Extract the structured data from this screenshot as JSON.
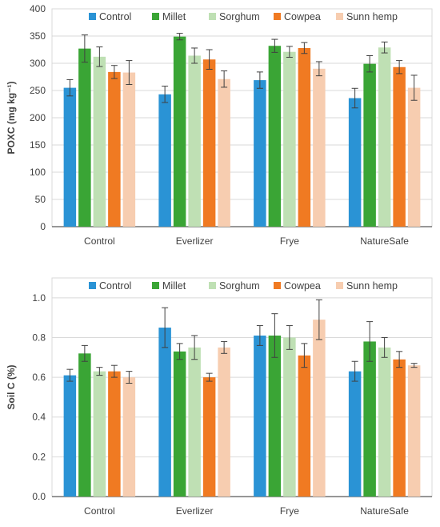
{
  "colors": {
    "Control": "#2a93d5",
    "Millet": "#3aa535",
    "Sorghum": "#bfe0b4",
    "Cowpea": "#f07a22",
    "Sunn hemp": "#f7cdb0",
    "grid": "#d9d9d9",
    "axis": "#595959",
    "error_bar": "#404040"
  },
  "chart_data": [
    {
      "type": "bar",
      "ylabel": "POXC (mg kg⁻¹)",
      "xlabel": "",
      "ylim": [
        0,
        400
      ],
      "yticks": [
        "0",
        "50",
        "100",
        "150",
        "200",
        "250",
        "300",
        "350",
        "400"
      ],
      "grid": true,
      "legend_position": "top",
      "categories": [
        "Control",
        "Everlizer",
        "Frye",
        "NatureSafe"
      ],
      "series": [
        {
          "name": "Control",
          "values": [
            255,
            243,
            269,
            236
          ],
          "errors": [
            15,
            15,
            15,
            18
          ]
        },
        {
          "name": "Millet",
          "values": [
            327,
            349,
            332,
            299
          ],
          "errors": [
            25,
            6,
            12,
            15
          ]
        },
        {
          "name": "Sorghum",
          "values": [
            312,
            314,
            321,
            329
          ],
          "errors": [
            18,
            14,
            10,
            10
          ]
        },
        {
          "name": "Cowpea",
          "values": [
            284,
            307,
            328,
            293
          ],
          "errors": [
            12,
            18,
            10,
            12
          ]
        },
        {
          "name": "Sunn hemp",
          "values": [
            283,
            271,
            290,
            255
          ],
          "errors": [
            22,
            15,
            13,
            23
          ]
        }
      ]
    },
    {
      "type": "bar",
      "ylabel": "Soil C (%)",
      "xlabel": "",
      "ylim": [
        0,
        1.1
      ],
      "yticks": [
        "0.0",
        "0.2",
        "0.4",
        "0.6",
        "0.8",
        "1.0"
      ],
      "grid": true,
      "legend_position": "top",
      "categories": [
        "Control",
        "Everlizer",
        "Frye",
        "NatureSafe"
      ],
      "series": [
        {
          "name": "Control",
          "values": [
            0.61,
            0.85,
            0.81,
            0.63
          ],
          "errors": [
            0.03,
            0.1,
            0.05,
            0.05
          ]
        },
        {
          "name": "Millet",
          "values": [
            0.72,
            0.73,
            0.81,
            0.78
          ],
          "errors": [
            0.04,
            0.04,
            0.11,
            0.1
          ]
        },
        {
          "name": "Sorghum",
          "values": [
            0.63,
            0.75,
            0.8,
            0.75
          ],
          "errors": [
            0.02,
            0.06,
            0.06,
            0.05
          ]
        },
        {
          "name": "Cowpea",
          "values": [
            0.63,
            0.6,
            0.71,
            0.69
          ],
          "errors": [
            0.03,
            0.02,
            0.06,
            0.04
          ]
        },
        {
          "name": "Sunn hemp",
          "values": [
            0.6,
            0.75,
            0.89,
            0.66
          ],
          "errors": [
            0.03,
            0.03,
            0.1,
            0.01
          ]
        }
      ]
    }
  ]
}
